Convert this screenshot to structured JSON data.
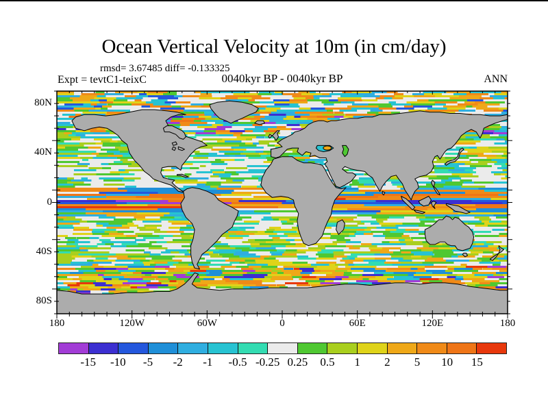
{
  "header": {
    "title": "Ocean Vertical Velocity at 10m (in cm/day)",
    "stats_line": "rmsd= 3.67485 diff= -0.133325",
    "experiment_label": "Expt = tevtC1-teixC",
    "period_label": "0040kyr BP - 0040kyr BP",
    "season_label": "ANN"
  },
  "axes": {
    "x_tick_labels": [
      "180",
      "120W",
      "60W",
      "0",
      "60E",
      "120E",
      "180"
    ],
    "x_tick_lons": [
      -180,
      -120,
      -60,
      0,
      60,
      120,
      180
    ],
    "y_tick_labels": [
      "80N",
      "40N",
      "0",
      "40S",
      "80S"
    ],
    "y_tick_lats": [
      80,
      40,
      0,
      -40,
      -80
    ]
  },
  "colorbar": {
    "labels": [
      "-15",
      "-10",
      "-5",
      "-2",
      "-1",
      "-0.5",
      "-0.25",
      "0.25",
      "0.5",
      "1",
      "2",
      "5",
      "10",
      "15"
    ],
    "colors": [
      "#A23CD6",
      "#3C2FD1",
      "#2457DD",
      "#1F8FD8",
      "#2FAEE0",
      "#27C3D2",
      "#33DCB2",
      "#EBEBEB",
      "#4FC832",
      "#A9CF1E",
      "#DFD319",
      "#EFA818",
      "#F08A18",
      "#EF7517",
      "#E8380C"
    ]
  },
  "map": {
    "land_color": "#ACACAC",
    "coast_color": "#000000",
    "frame_color": "#000000"
  },
  "chart_data": {
    "type": "heatmap",
    "title": "Ocean Vertical Velocity at 10m (in cm/day)",
    "variable": "ocean vertical velocity at 10 m depth",
    "units": "cm/day",
    "season": "ANN",
    "experiment": "tevtC1-teixC",
    "period": "0040kyr BP - 0040kyr BP",
    "stats": {
      "rmsd": 3.67485,
      "diff": -0.133325
    },
    "projection": "global equirectangular (cylindrical) lat-lon map",
    "xlabel_ticks": [
      "180",
      "120W",
      "60W",
      "0",
      "60E",
      "120E",
      "180"
    ],
    "ylabel_ticks": [
      "80N",
      "40N",
      "0",
      "40S",
      "80S"
    ],
    "lon_range": [
      -180,
      180
    ],
    "lat_range": [
      -90,
      90
    ],
    "colorbar_levels": [
      -15,
      -10,
      -5,
      -2,
      -1,
      -0.5,
      -0.25,
      0.25,
      0.5,
      1,
      2,
      5,
      10,
      15
    ],
    "colorbar_colors": [
      "#A23CD6",
      "#3C2FD1",
      "#2457DD",
      "#1F8FD8",
      "#2FAEE0",
      "#27C3D2",
      "#33DCB2",
      "#EBEBEB",
      "#4FC832",
      "#A9CF1E",
      "#DFD319",
      "#EFA818",
      "#F08A18",
      "#EF7517",
      "#E8380C"
    ],
    "legend_position": "horizontal bar below map",
    "pattern_notes": "Land masses gray; ocean filled with zonally banded velocity field: strong alternating blue/purple and orange bands along the equator, large near-zero white regions in the subtropical gyres, green/yellow mottling at mid-latitudes, an orange-yellow band with blue/purple spots along the Antarctic coast, and mixed cyan/orange noise in high northern latitudes."
  }
}
